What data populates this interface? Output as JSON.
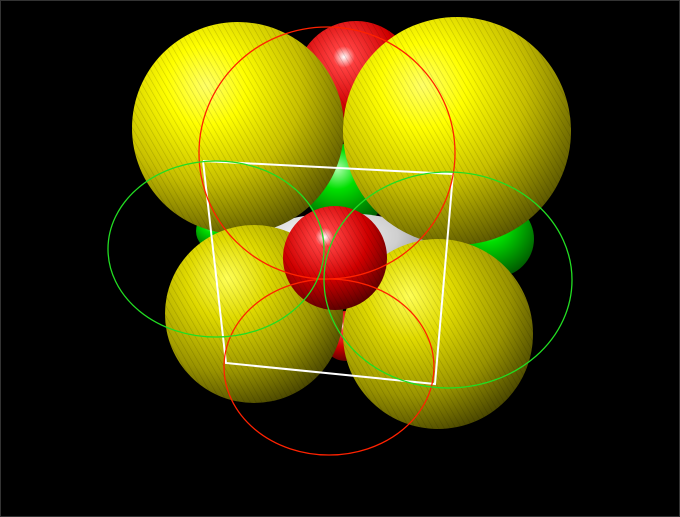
{
  "scene": {
    "colors": {
      "background": "#000000",
      "yellow_sphere": "#ffff00",
      "red_sphere": "#ff0000",
      "green_sphere": "#00dd00",
      "white_sphere": "#e8e8e8",
      "red_outline": "#ff2200",
      "green_outline": "#22dd22",
      "cell_edge": "#ffffff"
    }
  }
}
